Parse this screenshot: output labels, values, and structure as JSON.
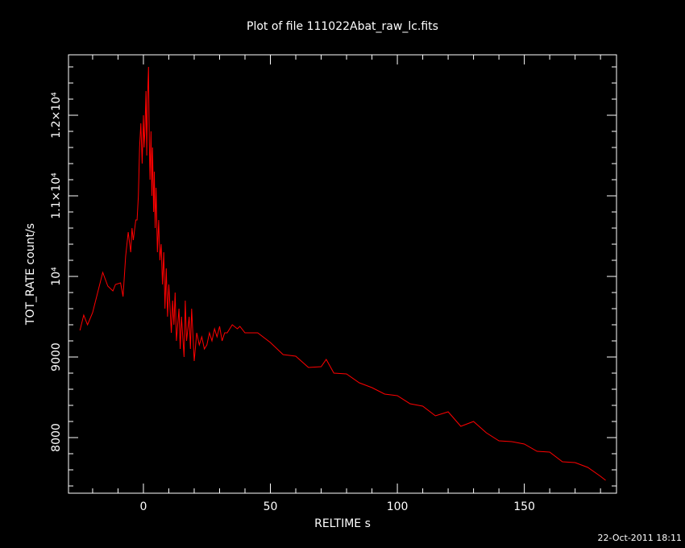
{
  "chart_data": {
    "type": "line",
    "title": "Plot of file 111022Abat_raw_lc.fits",
    "x_label": "RELTIME  s",
    "y_label": "TOT_RATE  count/s",
    "timestamp": "22-Oct-2011 18:11",
    "xlim": [
      -29.5,
      186.3
    ],
    "ylim": [
      7310,
      12750
    ],
    "xticks": [
      0,
      50,
      100,
      150
    ],
    "yticks": [
      8000,
      9000,
      {
        "value": 10000,
        "label": "10⁴"
      },
      {
        "value": 11000,
        "label": "1.1×10⁴"
      },
      {
        "value": 12000,
        "label": "1.2×10⁴"
      }
    ],
    "xminorticks": [
      -20,
      -10,
      10,
      20,
      30,
      40,
      60,
      70,
      80,
      90,
      110,
      120,
      130,
      140,
      160,
      170,
      180
    ],
    "yminorticks": [
      7400,
      7600,
      7800,
      8200,
      8400,
      8600,
      8800,
      9200,
      9400,
      9600,
      9800,
      10200,
      10400,
      10600,
      10800,
      11200,
      11400,
      11600,
      11800,
      12200,
      12400,
      12600
    ],
    "series": [
      {
        "color": "#ff0000",
        "x": [
          -25,
          -23.5,
          -22,
          -20,
          -18,
          -16,
          -14,
          -12,
          -11,
          -9,
          -8,
          -7,
          -6,
          -5,
          -4.5,
          -4,
          -3,
          -2.5,
          -2,
          -1.5,
          -1,
          -0.5,
          0,
          0.3,
          0.6,
          1,
          1.3,
          1.6,
          2,
          2.3,
          2.6,
          3,
          3.3,
          3.6,
          4,
          4.3,
          4.6,
          5,
          5.5,
          6,
          6.5,
          7,
          7.5,
          8,
          8.5,
          9,
          9.5,
          10,
          11,
          11.5,
          12,
          12.5,
          13,
          14,
          14.5,
          15,
          16,
          16.5,
          17,
          18,
          18.5,
          19,
          20,
          21,
          22,
          23,
          24,
          25,
          26,
          27,
          28,
          29,
          30,
          31,
          32,
          33,
          35,
          37,
          38,
          40,
          45,
          50,
          55,
          60,
          65,
          70,
          72,
          75,
          80,
          85,
          90,
          95,
          100,
          105,
          110,
          115,
          120,
          125,
          130,
          135,
          140,
          145,
          150,
          155,
          160,
          165,
          170,
          175,
          180,
          182
        ],
        "values": [
          9330,
          9520,
          9400,
          9550,
          9800,
          10050,
          9880,
          9820,
          9900,
          9920,
          9750,
          10250,
          10550,
          10300,
          10600,
          10450,
          10700,
          10700,
          11000,
          11600,
          11900,
          11400,
          12000,
          11600,
          11800,
          12300,
          11500,
          12200,
          12600,
          11700,
          11200,
          11800,
          11000,
          11600,
          10800,
          11300,
          10600,
          11100,
          10300,
          10700,
          10200,
          10400,
          9900,
          10300,
          9600,
          10100,
          9500,
          9900,
          9300,
          9700,
          9400,
          9800,
          9200,
          9600,
          9100,
          9500,
          9000,
          9700,
          9200,
          9500,
          9100,
          9600,
          8950,
          9300,
          9150,
          9250,
          9100,
          9150,
          9300,
          9200,
          9350,
          9250,
          9380,
          9200,
          9300,
          9300,
          9400,
          9350,
          9380,
          9300,
          9300,
          9180,
          9030,
          9010,
          8870,
          8880,
          8970,
          8800,
          8790,
          8680,
          8620,
          8540,
          8520,
          8420,
          8390,
          8270,
          8320,
          8140,
          8200,
          8060,
          7960,
          7950,
          7920,
          7830,
          7820,
          7700,
          7690,
          7630,
          7520,
          7470
        ]
      }
    ]
  }
}
